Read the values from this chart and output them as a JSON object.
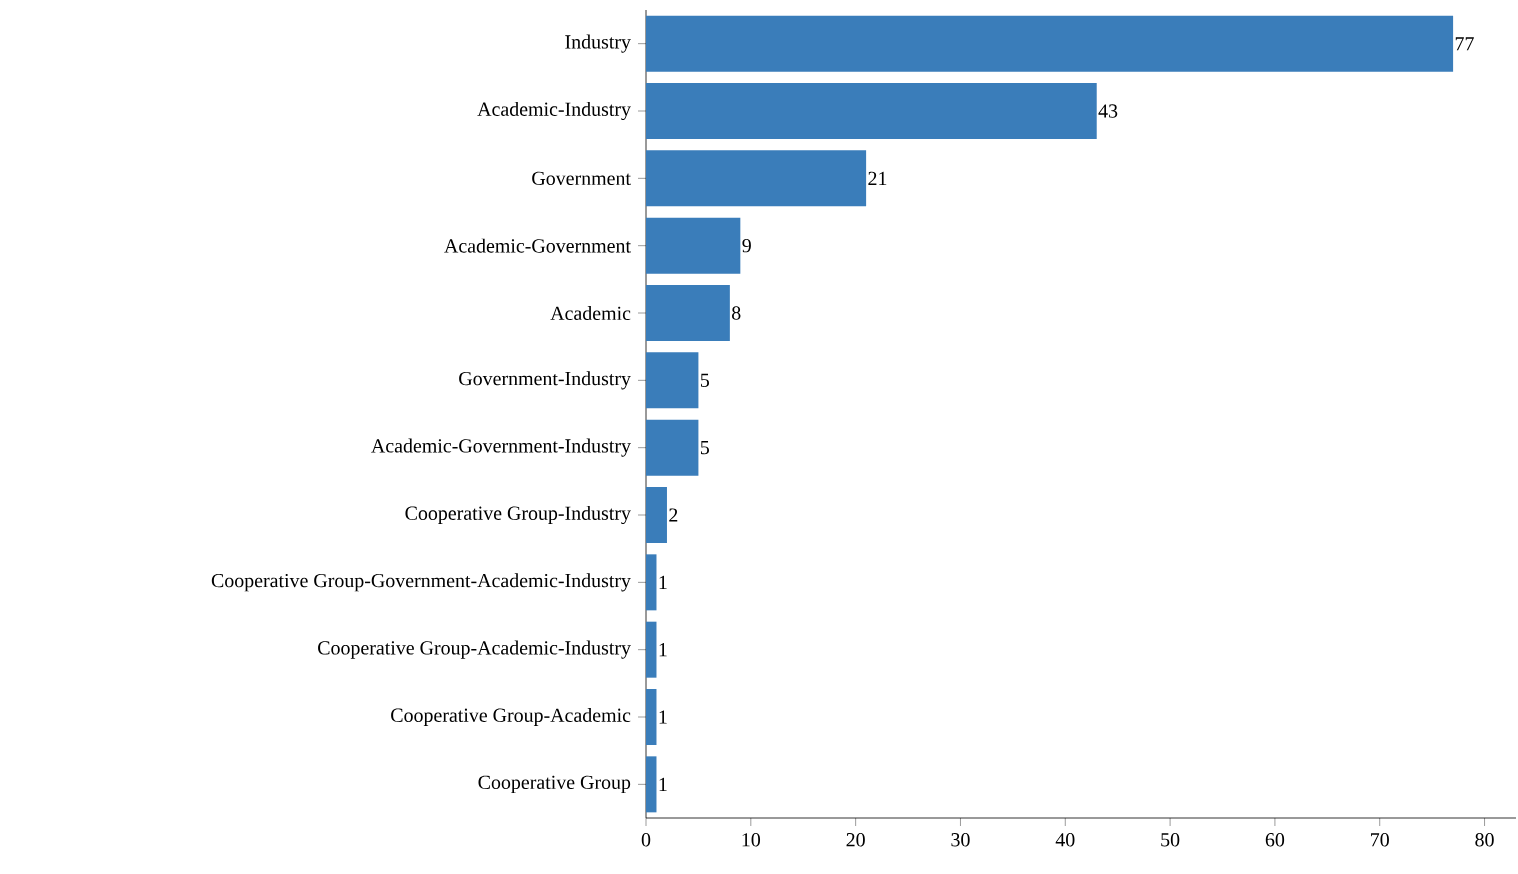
{
  "chart_data": {
    "type": "bar",
    "orientation": "horizontal",
    "categories": [
      "Industry",
      "Academic-Industry",
      "Government",
      "Academic-Government",
      "Academic",
      "Government-Industry",
      "Academic-Government-Industry",
      "Cooperative Group-Industry",
      "Cooperative Group-Government-Academic-Industry",
      "Cooperative Group-Academic-Industry",
      "Cooperative Group-Academic",
      "Cooperative Group"
    ],
    "values": [
      77,
      43,
      21,
      9,
      8,
      5,
      5,
      2,
      1,
      1,
      1,
      1
    ],
    "color": "#3a7dba",
    "data_labels": true,
    "xlim": [
      0,
      83
    ],
    "xticks": [
      0,
      10,
      20,
      30,
      40,
      50,
      60,
      70,
      80
    ]
  }
}
